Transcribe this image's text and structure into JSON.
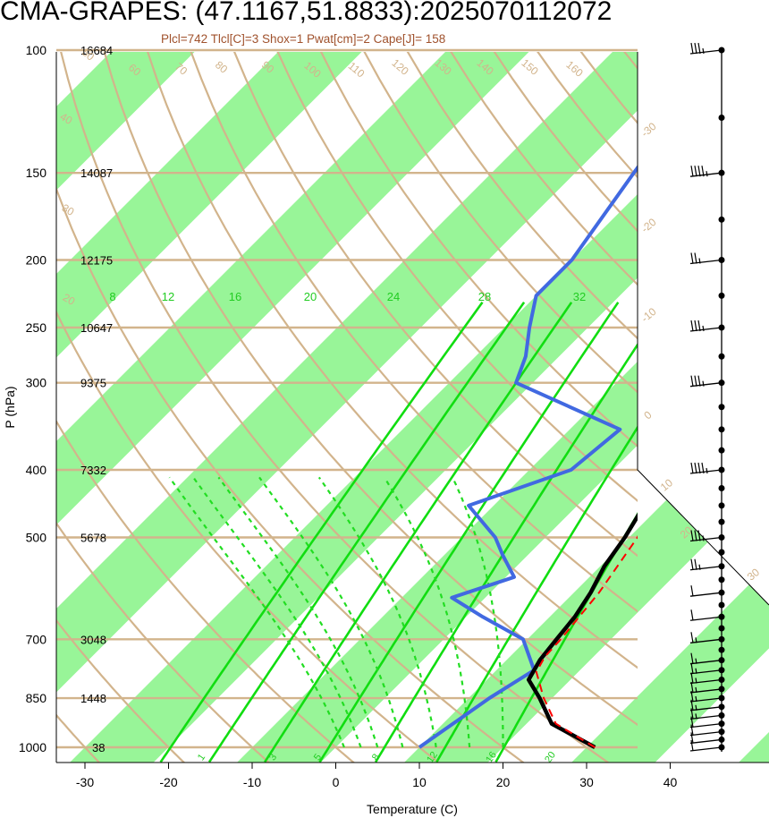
{
  "title": "CMA-GRAPES: (47.1167,51.8833):2025070112072",
  "subtitle": "Plcl=742 Tlcl[C]=3 Shox=1 Pwat[cm]=2 Cape[J]= 158",
  "chart_data": {
    "type": "line",
    "xlabel": "Temperature (C)",
    "ylabel": "P (hPa)",
    "xlim": [
      -33,
      51
    ],
    "ylim": [
      1050,
      100
    ],
    "y_scale": "log",
    "x_ticks": [
      -30,
      -20,
      -10,
      0,
      10,
      20,
      30,
      40
    ],
    "pressure_levels": [
      {
        "p": 100,
        "label": "100",
        "height": "16684"
      },
      {
        "p": 150,
        "label": "150",
        "height": "14087"
      },
      {
        "p": 200,
        "label": "200",
        "height": "12175"
      },
      {
        "p": 250,
        "label": "250",
        "height": "10647"
      },
      {
        "p": 300,
        "label": "300",
        "height": "9375"
      },
      {
        "p": 400,
        "label": "400",
        "height": "7332"
      },
      {
        "p": 500,
        "label": "500",
        "height": "5678"
      },
      {
        "p": 700,
        "label": "700",
        "height": "3048"
      },
      {
        "p": 850,
        "label": "850",
        "height": "1448"
      },
      {
        "p": 1000,
        "label": "1000",
        "height": "38"
      }
    ],
    "temperature": [
      {
        "p": 1000,
        "t": 31
      },
      {
        "p": 925,
        "t": 23
      },
      {
        "p": 850,
        "t": 18.5
      },
      {
        "p": 800,
        "t": 15
      },
      {
        "p": 750,
        "t": 14
      },
      {
        "p": 700,
        "t": 13.5
      },
      {
        "p": 650,
        "t": 13
      },
      {
        "p": 600,
        "t": 12
      },
      {
        "p": 550,
        "t": 10.5
      },
      {
        "p": 500,
        "t": 9.5
      },
      {
        "p": 450,
        "t": 8
      },
      {
        "p": 400,
        "t": 6.5
      },
      {
        "p": 350,
        "t": 4.5
      },
      {
        "p": 300,
        "t": 5
      },
      {
        "p": 250,
        "t": 6
      },
      {
        "p": 200,
        "t": 7
      },
      {
        "p": 150,
        "t": 8
      },
      {
        "p": 100,
        "t": 9
      }
    ],
    "dewpoint": [
      {
        "p": 1000,
        "td": 10
      },
      {
        "p": 850,
        "td": 12.5
      },
      {
        "p": 775,
        "td": 14.5
      },
      {
        "p": 700,
        "td": 9.5
      },
      {
        "p": 650,
        "td": 2
      },
      {
        "p": 610,
        "td": -4
      },
      {
        "p": 570,
        "td": 1
      },
      {
        "p": 530,
        "td": -3
      },
      {
        "p": 500,
        "td": -6
      },
      {
        "p": 450,
        "td": -13
      },
      {
        "p": 400,
        "td": -5
      },
      {
        "p": 350,
        "td": -4
      },
      {
        "p": 300,
        "td": -22
      },
      {
        "p": 275,
        "td": -24
      },
      {
        "p": 250,
        "td": -27
      },
      {
        "p": 225,
        "td": -30
      },
      {
        "p": 200,
        "td": -30
      },
      {
        "p": 150,
        "td": -33
      },
      {
        "p": 100,
        "td": -37
      }
    ],
    "parcel": [
      {
        "p": 1000,
        "t": 31
      },
      {
        "p": 925,
        "t": 23.5
      },
      {
        "p": 850,
        "t": 19
      },
      {
        "p": 780,
        "t": 15
      },
      {
        "p": 742,
        "t": 14.2
      },
      {
        "p": 700,
        "t": 14
      },
      {
        "p": 600,
        "t": 13
      },
      {
        "p": 500,
        "t": 11
      },
      {
        "p": 450,
        "t": 9
      }
    ],
    "isotherm_labels": [
      "-40",
      "-30",
      "-20",
      "-10",
      "0",
      "10",
      "20",
      "30"
    ],
    "dry_adiabat_labels": [
      "20",
      "30",
      "40",
      "50",
      "60",
      "70",
      "80",
      "90",
      "100",
      "110",
      "120",
      "130",
      "140",
      "150",
      "160"
    ],
    "mixing_ratio_labels": [
      "8",
      "12",
      "16",
      "20",
      "24",
      "28",
      "32"
    ],
    "moist_adiabat_labels": [
      "1",
      "3",
      "5",
      "8",
      "12",
      "16",
      "20"
    ],
    "moist_adiabat_values": [
      1,
      3,
      5,
      8,
      12,
      16,
      20
    ],
    "wind_barbs": [
      {
        "p": 1000,
        "kt": 10
      },
      {
        "p": 975,
        "kt": 10
      },
      {
        "p": 950,
        "kt": 10
      },
      {
        "p": 925,
        "kt": 10
      },
      {
        "p": 900,
        "kt": 5
      },
      {
        "p": 875,
        "kt": 5
      },
      {
        "p": 850,
        "kt": 5
      },
      {
        "p": 825,
        "kt": 5
      },
      {
        "p": 800,
        "kt": 5
      },
      {
        "p": 775,
        "kt": 5
      },
      {
        "p": 750,
        "kt": 5
      },
      {
        "p": 700,
        "kt": 5
      },
      {
        "p": 650,
        "kt": 10
      },
      {
        "p": 600,
        "kt": 10
      },
      {
        "p": 550,
        "kt": 15
      },
      {
        "p": 500,
        "kt": 25
      },
      {
        "p": 400,
        "kt": 35
      },
      {
        "p": 300,
        "kt": 25
      },
      {
        "p": 250,
        "kt": 25
      },
      {
        "p": 200,
        "kt": 15
      },
      {
        "p": 150,
        "kt": 35
      },
      {
        "p": 100,
        "kt": 25
      }
    ],
    "colors": {
      "temperature": "#000000",
      "dewpoint": "#4169e1",
      "parcel": "#ff0000",
      "band": "#98f598",
      "dry_adiabat": "#d2b48c",
      "mixing_ratio": "#00dd00",
      "moist_adiabat": "#22dd22"
    }
  }
}
